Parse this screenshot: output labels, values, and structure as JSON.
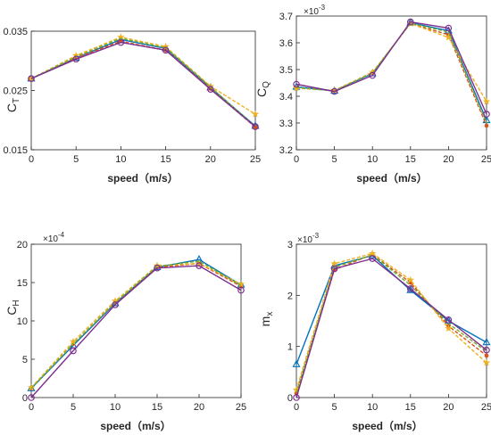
{
  "figure": {
    "series_styles": [
      {
        "color": "#0072BD",
        "marker": "triangle",
        "dash": "solid"
      },
      {
        "color": "#D95319",
        "marker": "dot",
        "dash": "dashed"
      },
      {
        "color": "#EDB120",
        "marker": "star",
        "dash": "dashed"
      },
      {
        "color": "#77AC30",
        "marker": "none",
        "dash": "dashed"
      },
      {
        "color": "#7E2F8E",
        "marker": "circle",
        "dash": "solid"
      }
    ]
  },
  "chart_data": [
    {
      "type": "line",
      "ylabel": "C",
      "ylabel_sub": "T",
      "xlabel": "speed（m/s）",
      "multiplier": "",
      "multiplier_exp": "",
      "x": [
        0,
        5,
        10,
        15,
        20,
        25
      ],
      "xlim": [
        0,
        25
      ],
      "ylim": [
        0.015,
        0.035
      ],
      "xticks": [
        0,
        5,
        10,
        15,
        20,
        25
      ],
      "yticks": [
        0.015,
        0.025,
        0.035
      ],
      "ytick_labels": [
        "0.015",
        "0.025",
        "0.035"
      ],
      "series": [
        {
          "values": [
            0.027,
            0.0305,
            0.0336,
            0.0321,
            0.0255,
            0.019
          ]
        },
        {
          "values": [
            0.027,
            0.0305,
            0.0333,
            0.0318,
            0.0253,
            0.0188
          ]
        },
        {
          "values": [
            0.027,
            0.0309,
            0.034,
            0.0324,
            0.0257,
            0.021
          ]
        },
        {
          "values": [
            0.027,
            0.0307,
            0.0338,
            0.0322,
            0.0256,
            0.0189
          ]
        },
        {
          "values": [
            0.027,
            0.0303,
            0.0331,
            0.0318,
            0.0252,
            0.0189
          ]
        }
      ]
    },
    {
      "type": "line",
      "ylabel": "C",
      "ylabel_sub": "Q",
      "xlabel": "speed（m/s）",
      "multiplier": "×10",
      "multiplier_exp": "-3",
      "x": [
        0,
        5,
        10,
        15,
        20,
        25
      ],
      "xlim": [
        0,
        25
      ],
      "ylim": [
        3.2,
        3.7
      ],
      "xticks": [
        0,
        5,
        10,
        15,
        20,
        25
      ],
      "yticks": [
        3.2,
        3.3,
        3.4,
        3.5,
        3.6,
        3.7
      ],
      "ytick_labels": [
        "3.2",
        "3.3",
        "3.4",
        "3.5",
        "3.6",
        "3.7"
      ],
      "series": [
        {
          "values": [
            3.435,
            3.42,
            3.485,
            3.675,
            3.645,
            3.31
          ]
        },
        {
          "values": [
            3.432,
            3.421,
            3.488,
            3.672,
            3.63,
            3.29
          ]
        },
        {
          "values": [
            3.43,
            3.422,
            3.49,
            3.672,
            3.62,
            3.38
          ]
        },
        {
          "values": [
            3.433,
            3.42,
            3.487,
            3.673,
            3.64,
            3.3
          ]
        },
        {
          "values": [
            3.445,
            3.418,
            3.478,
            3.678,
            3.655,
            3.333
          ]
        }
      ]
    },
    {
      "type": "line",
      "ylabel": "C",
      "ylabel_sub": "H",
      "xlabel": "speed（m/s）",
      "multiplier": "×10",
      "multiplier_exp": "-4",
      "x": [
        0,
        5,
        10,
        15,
        20,
        25
      ],
      "xlim": [
        0,
        25
      ],
      "ylim": [
        0,
        20
      ],
      "xticks": [
        0,
        5,
        10,
        15,
        20,
        25
      ],
      "yticks": [
        0,
        5,
        10,
        15,
        20
      ],
      "ytick_labels": [
        "0",
        "5",
        "10",
        "15",
        "20"
      ],
      "series": [
        {
          "values": [
            1.2,
            6.8,
            12.3,
            17.0,
            18.0,
            14.7
          ]
        },
        {
          "values": [
            1.2,
            7.0,
            12.4,
            17.0,
            17.5,
            14.5
          ]
        },
        {
          "values": [
            1.3,
            7.3,
            12.6,
            17.2,
            17.5,
            14.8
          ]
        },
        {
          "values": [
            1.2,
            7.0,
            12.4,
            17.1,
            17.8,
            14.6
          ]
        },
        {
          "values": [
            0.0,
            6.1,
            12.1,
            16.9,
            17.2,
            14.0
          ]
        }
      ]
    },
    {
      "type": "line",
      "ylabel": "m",
      "ylabel_sub": "x",
      "xlabel": "speed（m/s）",
      "multiplier": "×10",
      "multiplier_exp": "-3",
      "x": [
        0,
        5,
        10,
        15,
        20,
        25
      ],
      "xlim": [
        0,
        25
      ],
      "ylim": [
        0,
        3
      ],
      "xticks": [
        0,
        5,
        10,
        15,
        20,
        25
      ],
      "yticks": [
        0,
        1,
        2,
        3
      ],
      "ytick_labels": [
        "0",
        "1",
        "2",
        "3"
      ],
      "series": [
        {
          "values": [
            0.65,
            2.58,
            2.78,
            2.1,
            1.5,
            1.08
          ]
        },
        {
          "values": [
            0.08,
            2.5,
            2.8,
            2.25,
            1.4,
            0.82
          ]
        },
        {
          "values": [
            0.15,
            2.62,
            2.82,
            2.3,
            1.35,
            0.68
          ]
        },
        {
          "values": [
            0.1,
            2.55,
            2.79,
            2.2,
            1.45,
            0.9
          ]
        },
        {
          "values": [
            0.0,
            2.52,
            2.72,
            2.13,
            1.52,
            0.93
          ]
        }
      ]
    }
  ]
}
